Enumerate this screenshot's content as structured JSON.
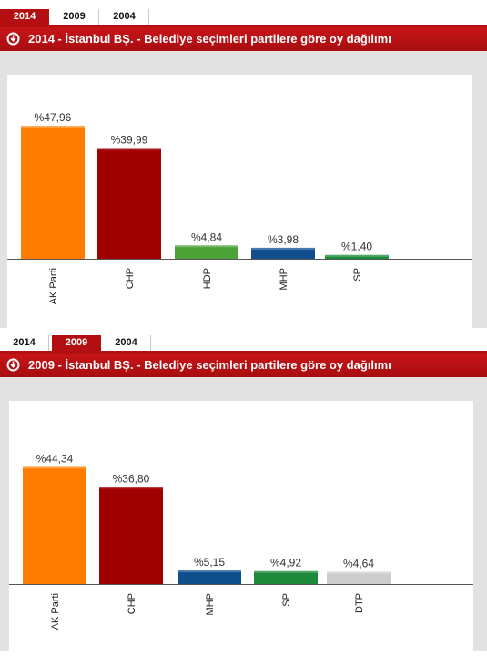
{
  "panels": [
    {
      "tabs": [
        "2014",
        "2009",
        "2004"
      ],
      "active_tab": 0,
      "title": "2014 - İstanbul BŞ. - Belediye seçimleri partilere göre oy dağılımı"
    },
    {
      "tabs": [
        "2014",
        "2009",
        "2004"
      ],
      "active_tab": 1,
      "title": "2009 - İstanbul BŞ. - Belediye seçimleri partilere göre oy dağılımı"
    }
  ],
  "chart_data": [
    {
      "type": "bar",
      "title": "2014 - İstanbul BŞ. - Belediye seçimleri partilere göre oy dağılımı",
      "categories": [
        "AK Parti",
        "CHP",
        "HDP",
        "MHP",
        "SP"
      ],
      "values": [
        47.96,
        39.99,
        4.84,
        3.98,
        1.4
      ],
      "labels": [
        "%47,96",
        "%39,99",
        "%4,84",
        "%3,98",
        "%1,40"
      ],
      "colors": [
        "#ff7c00",
        "#a00000",
        "#4ca137",
        "#0f4f8e",
        "#1d8a3b"
      ],
      "ylim": [
        0,
        50
      ],
      "grid": false,
      "legend": false
    },
    {
      "type": "bar",
      "title": "2009 - İstanbul BŞ. - Belediye seçimleri partilere göre oy dağılımı",
      "categories": [
        "AK Parti",
        "CHP",
        "MHP",
        "SP",
        "DTP"
      ],
      "values": [
        44.34,
        36.8,
        5.15,
        4.92,
        4.64
      ],
      "labels": [
        "%44,34",
        "%36,80",
        "%5,15",
        "%4,92",
        "%4,64"
      ],
      "colors": [
        "#ff7c00",
        "#a00000",
        "#0f4f8e",
        "#1d8a3b",
        "#cccccc"
      ],
      "ylim": [
        0,
        50
      ],
      "grid": false,
      "legend": false
    }
  ]
}
